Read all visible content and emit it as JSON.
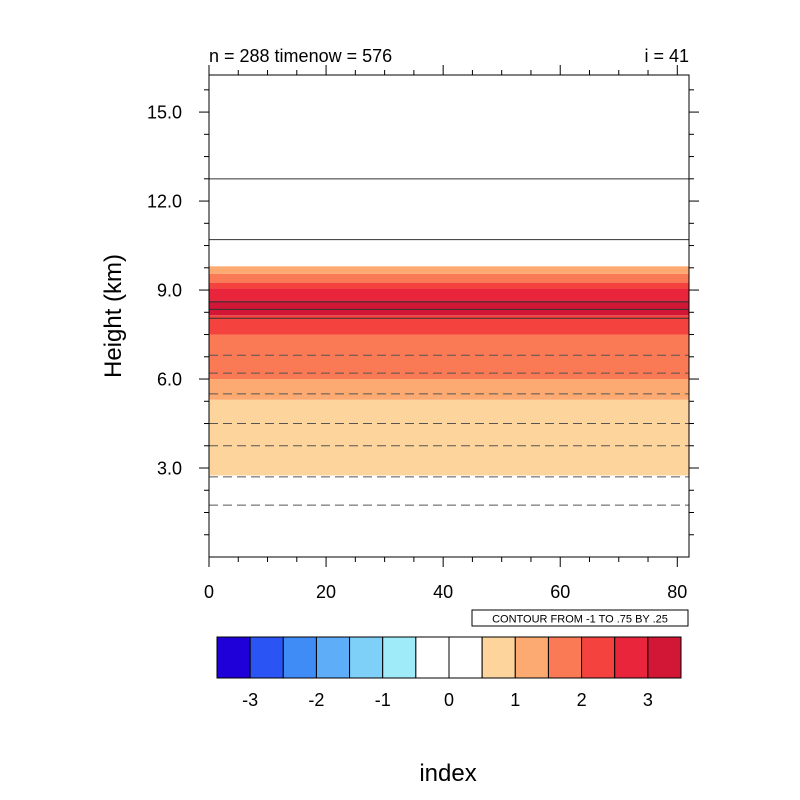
{
  "chart_data": {
    "type": "heatmap",
    "title_left": "n = 288 timenow = 576",
    "title_right": "i = 41",
    "xlabel": "index",
    "ylabel": "Height (km)",
    "xlim": [
      0,
      82
    ],
    "ylim": [
      0,
      16.25
    ],
    "xticks": [
      0,
      20,
      40,
      60,
      80
    ],
    "xtick_labels": [
      "0",
      "20",
      "40",
      "60",
      "80"
    ],
    "yticks": [
      3,
      6,
      9,
      12,
      15
    ],
    "ytick_labels": [
      "3.0",
      "6.0",
      "9.0",
      "12.0",
      "15.0"
    ],
    "contour_info": "CONTOUR FROM -1 TO .75 BY .25",
    "bands": [
      {
        "y0": 2.75,
        "y1": 5.3,
        "level": 0.5
      },
      {
        "y0": 5.3,
        "y1": 6.0,
        "level": 1.0
      },
      {
        "y0": 6.0,
        "y1": 7.5,
        "level": 1.5
      },
      {
        "y0": 7.5,
        "y1": 8.15,
        "level": 2.0
      },
      {
        "y0": 8.15,
        "y1": 8.65,
        "level": 3.0
      },
      {
        "y0": 8.65,
        "y1": 9.05,
        "level": 2.5
      },
      {
        "y0": 9.05,
        "y1": 9.25,
        "level": 2.0
      },
      {
        "y0": 9.25,
        "y1": 9.55,
        "level": 1.5
      },
      {
        "y0": 9.55,
        "y1": 9.8,
        "level": 1.0
      }
    ],
    "contour_lines": [
      {
        "y": 12.75,
        "style": "solid"
      },
      {
        "y": 10.7,
        "style": "solid"
      },
      {
        "y": 8.05,
        "style": "solid"
      },
      {
        "y": 8.35,
        "style": "solid"
      },
      {
        "y": 8.6,
        "style": "solid"
      },
      {
        "y": 6.8,
        "style": "dashed"
      },
      {
        "y": 6.2,
        "style": "dashed"
      },
      {
        "y": 5.5,
        "style": "dashed"
      },
      {
        "y": 4.5,
        "style": "dashed"
      },
      {
        "y": 3.75,
        "style": "dashed"
      },
      {
        "y": 2.7,
        "style": "dashed"
      },
      {
        "y": 1.75,
        "style": "dashed"
      }
    ],
    "colorbar": {
      "colors": [
        "#2000d8",
        "#2b54f5",
        "#3f8cf7",
        "#5dadf8",
        "#7ed0f8",
        "#a0ebfa",
        "#ffffff",
        "#ffffff",
        "#fdd49c",
        "#fcaa72",
        "#fb7a56",
        "#f4433f",
        "#e8253a",
        "#d21635"
      ],
      "tick_values": [
        -3,
        -2,
        -1,
        0,
        1,
        2,
        3
      ],
      "tick_labels": [
        "-3",
        "-2",
        "-1",
        "0",
        "1",
        "2",
        "3"
      ]
    }
  }
}
